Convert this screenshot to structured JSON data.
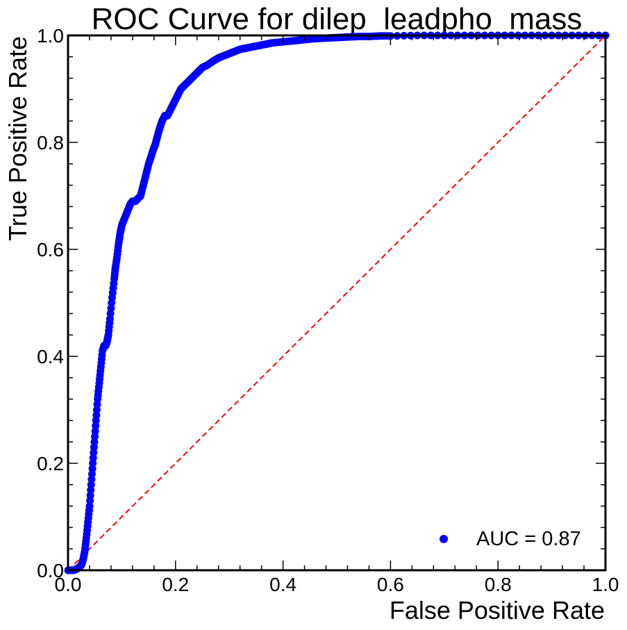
{
  "colors": {
    "points": "#0000ff",
    "diagonal": "#ff0000",
    "axes": "#000000",
    "background": "#ffffff"
  },
  "chart_data": {
    "type": "scatter",
    "title": "ROC Curve for dilep_leadpho_mass",
    "xlabel": "False Positive Rate",
    "ylabel": "True Positive Rate",
    "xlim": [
      0.0,
      1.0
    ],
    "ylim": [
      0.0,
      1.0
    ],
    "x_ticks": [
      0.0,
      0.2,
      0.4,
      0.6,
      0.8,
      1.0
    ],
    "y_ticks": [
      0.0,
      0.2,
      0.4,
      0.6,
      0.8,
      1.0
    ],
    "x_tick_labels": [
      "0.0",
      "0.2",
      "0.4",
      "0.6",
      "0.8",
      "1.0"
    ],
    "y_tick_labels": [
      "0.0",
      "0.2",
      "0.4",
      "0.6",
      "0.8",
      "1.0"
    ],
    "grid": false,
    "legend": {
      "position": "lower-right",
      "entries": [
        "AUC = 0.87"
      ]
    },
    "series": [
      {
        "name": "AUC = 0.87",
        "style": "points",
        "x": [
          0.0,
          0.005,
          0.01,
          0.015,
          0.02,
          0.025,
          0.028,
          0.031,
          0.034,
          0.037,
          0.04,
          0.043,
          0.046,
          0.049,
          0.052,
          0.055,
          0.058,
          0.061,
          0.064,
          0.067,
          0.07,
          0.072,
          0.075,
          0.078,
          0.082,
          0.086,
          0.088,
          0.091,
          0.094,
          0.097,
          0.1,
          0.104,
          0.108,
          0.112,
          0.116,
          0.12,
          0.125,
          0.13,
          0.135,
          0.14,
          0.145,
          0.15,
          0.155,
          0.158,
          0.162,
          0.166,
          0.17,
          0.175,
          0.18,
          0.185,
          0.19,
          0.195,
          0.2,
          0.205,
          0.21,
          0.215,
          0.22,
          0.225,
          0.23,
          0.235,
          0.24,
          0.245,
          0.25,
          0.26,
          0.27,
          0.28,
          0.29,
          0.3,
          0.31,
          0.32,
          0.33,
          0.34,
          0.35,
          0.36,
          0.37,
          0.38,
          0.4,
          0.42,
          0.44,
          0.46,
          0.48,
          0.5,
          0.52,
          0.54,
          0.56,
          0.58,
          0.6,
          0.65,
          0.7,
          0.75,
          0.8,
          0.85,
          0.9,
          0.95,
          1.0
        ],
        "y": [
          0.0,
          0.0,
          0.0,
          0.002,
          0.005,
          0.01,
          0.02,
          0.035,
          0.06,
          0.09,
          0.12,
          0.16,
          0.2,
          0.24,
          0.28,
          0.32,
          0.35,
          0.38,
          0.41,
          0.42,
          0.42,
          0.425,
          0.44,
          0.47,
          0.51,
          0.545,
          0.565,
          0.585,
          0.61,
          0.63,
          0.645,
          0.655,
          0.665,
          0.675,
          0.685,
          0.69,
          0.69,
          0.695,
          0.7,
          0.72,
          0.74,
          0.76,
          0.775,
          0.785,
          0.795,
          0.81,
          0.825,
          0.84,
          0.85,
          0.85,
          0.86,
          0.87,
          0.88,
          0.89,
          0.9,
          0.905,
          0.91,
          0.915,
          0.92,
          0.925,
          0.93,
          0.935,
          0.94,
          0.945,
          0.952,
          0.958,
          0.962,
          0.966,
          0.97,
          0.974,
          0.976,
          0.978,
          0.98,
          0.982,
          0.984,
          0.986,
          0.988,
          0.99,
          0.992,
          0.994,
          0.995,
          0.996,
          0.997,
          0.998,
          0.998,
          0.999,
          0.999,
          1.0,
          1.0,
          1.0,
          1.0,
          1.0,
          1.0,
          1.0,
          1.0
        ]
      },
      {
        "name": "",
        "style": "dashed-line",
        "x": [
          0.0,
          1.0
        ],
        "y": [
          0.0,
          1.0
        ]
      }
    ]
  }
}
